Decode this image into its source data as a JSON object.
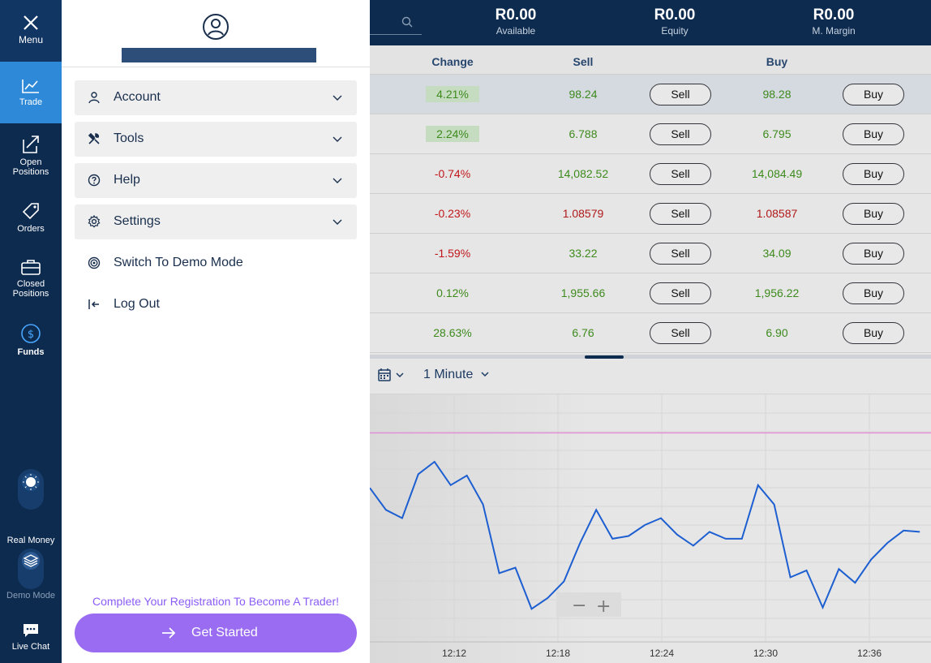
{
  "rail": {
    "menu": "Menu",
    "trade": "Trade",
    "open_positions_1": "Open",
    "open_positions_2": "Positions",
    "orders": "Orders",
    "closed_positions_1": "Closed",
    "closed_positions_2": "Positions",
    "funds": "Funds",
    "real_money": "Real Money",
    "demo_mode": "Demo Mode",
    "live_chat": "Live Chat"
  },
  "header": {
    "available_value": "R0.00",
    "available_label": "Available",
    "equity_value": "R0.00",
    "equity_label": "Equity",
    "margin_value": "R0.00",
    "margin_label": "M. Margin"
  },
  "table": {
    "col_change": "Change",
    "col_sell": "Sell",
    "col_buy": "Buy",
    "sell_label": "Sell",
    "buy_label": "Buy",
    "rows": [
      {
        "change": "4.21%",
        "sell": "98.24",
        "buy": "98.28"
      },
      {
        "change": "2.24%",
        "sell": "6.788",
        "buy": "6.795"
      },
      {
        "change": "-0.74%",
        "sell": "14,082.52",
        "buy": "14,084.49"
      },
      {
        "change": "-0.23%",
        "sell": "1.08579",
        "buy": "1.08587"
      },
      {
        "change": "-1.59%",
        "sell": "33.22",
        "buy": "34.09"
      },
      {
        "change": "0.12%",
        "sell": "1,955.66",
        "buy": "1,956.22"
      },
      {
        "change": "28.63%",
        "sell": "6.76",
        "buy": "6.90"
      }
    ]
  },
  "chart_toolbar": {
    "interval": "1 Minute"
  },
  "chart_data": {
    "type": "line",
    "x_ticks": [
      "12:12",
      "12:18",
      "12:24",
      "12:30",
      "12:36"
    ],
    "series": [
      {
        "values": [
          62,
          46,
          40,
          72,
          81,
          64,
          71,
          50,
          0,
          4,
          -26,
          -18,
          -6,
          22,
          46,
          25,
          27,
          35,
          40,
          28,
          20,
          30,
          25,
          25,
          64,
          50,
          -3,
          2,
          -25,
          3,
          -7,
          10,
          22,
          31,
          30
        ]
      }
    ],
    "ylim": [
      -50,
      130
    ],
    "reference_line_value": 102,
    "colors": {
      "line": "#1d5fd1",
      "reference": "#e48bd6"
    }
  },
  "zoom": {
    "minus": "−",
    "plus": "+"
  },
  "drawer": {
    "menu_items": [
      {
        "label": "Account"
      },
      {
        "label": "Tools"
      },
      {
        "label": "Help"
      },
      {
        "label": "Settings"
      },
      {
        "label": "Switch To Demo Mode"
      },
      {
        "label": "Log Out"
      }
    ],
    "registration_text": "Complete Your Registration To Become A Trader!",
    "get_started": "Get Started"
  }
}
